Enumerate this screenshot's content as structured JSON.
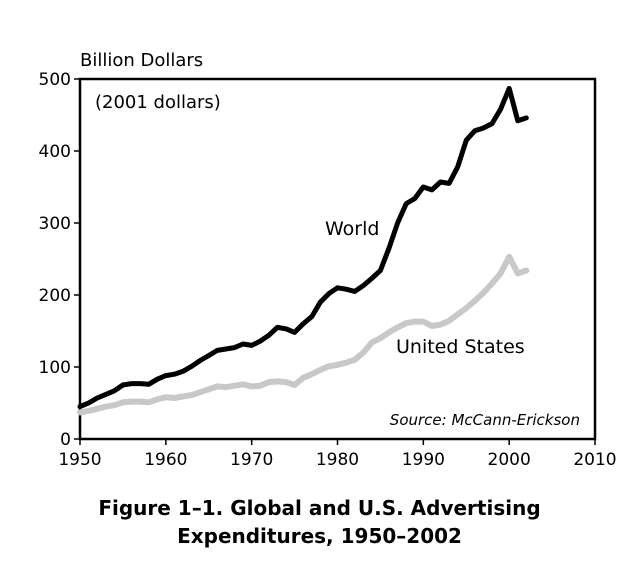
{
  "caption": {
    "line1": "Figure 1–1. Global and U.S. Advertising",
    "line2": "Expenditures, 1950–2002"
  },
  "chart_data": {
    "type": "line",
    "ylabel": "Billion Dollars",
    "unit_note": "(2001 dollars)",
    "source": "Source: McCann-Erickson",
    "xlim": [
      1950,
      2010
    ],
    "ylim": [
      0,
      500
    ],
    "x_ticks": [
      1950,
      1960,
      1970,
      1980,
      1990,
      2000,
      2010
    ],
    "y_ticks": [
      0,
      100,
      200,
      300,
      400,
      500
    ],
    "grid": false,
    "legend": "inline labels",
    "series": [
      {
        "name": "World",
        "color": "#000000",
        "x": [
          1950,
          1951,
          1952,
          1953,
          1954,
          1955,
          1956,
          1957,
          1958,
          1959,
          1960,
          1961,
          1962,
          1963,
          1964,
          1965,
          1966,
          1967,
          1968,
          1969,
          1970,
          1971,
          1972,
          1973,
          1974,
          1975,
          1976,
          1977,
          1978,
          1979,
          1980,
          1981,
          1982,
          1983,
          1984,
          1985,
          1986,
          1987,
          1988,
          1989,
          1990,
          1991,
          1992,
          1993,
          1994,
          1995,
          1996,
          1997,
          1998,
          1999,
          2000,
          2001,
          2002
        ],
        "values": [
          45,
          50,
          57,
          62,
          67,
          75,
          77,
          77,
          76,
          83,
          88,
          90,
          94,
          101,
          109,
          116,
          123,
          125,
          127,
          132,
          130,
          136,
          144,
          155,
          153,
          148,
          160,
          170,
          190,
          202,
          210,
          208,
          205,
          213,
          223,
          234,
          265,
          300,
          327,
          334,
          350,
          346,
          357,
          355,
          378,
          415,
          428,
          432,
          438,
          458,
          487,
          442,
          446
        ]
      },
      {
        "name": "United States",
        "color": "#c8c8c8",
        "x": [
          1950,
          1951,
          1952,
          1953,
          1954,
          1955,
          1956,
          1957,
          1958,
          1959,
          1960,
          1961,
          1962,
          1963,
          1964,
          1965,
          1966,
          1967,
          1968,
          1969,
          1970,
          1971,
          1972,
          1973,
          1974,
          1975,
          1976,
          1977,
          1978,
          1979,
          1980,
          1981,
          1982,
          1983,
          1984,
          1985,
          1986,
          1987,
          1988,
          1989,
          1990,
          1991,
          1992,
          1993,
          1994,
          1995,
          1996,
          1997,
          1998,
          1999,
          2000,
          2001,
          2002
        ],
        "values": [
          37,
          39,
          42,
          45,
          47,
          51,
          52,
          52,
          51,
          55,
          58,
          57,
          59,
          61,
          65,
          69,
          73,
          72,
          74,
          76,
          73,
          74,
          79,
          80,
          79,
          75,
          85,
          90,
          96,
          101,
          103,
          106,
          110,
          120,
          134,
          140,
          148,
          155,
          161,
          163,
          163,
          157,
          159,
          164,
          173,
          182,
          192,
          203,
          216,
          230,
          253,
          230,
          234
        ]
      }
    ]
  }
}
